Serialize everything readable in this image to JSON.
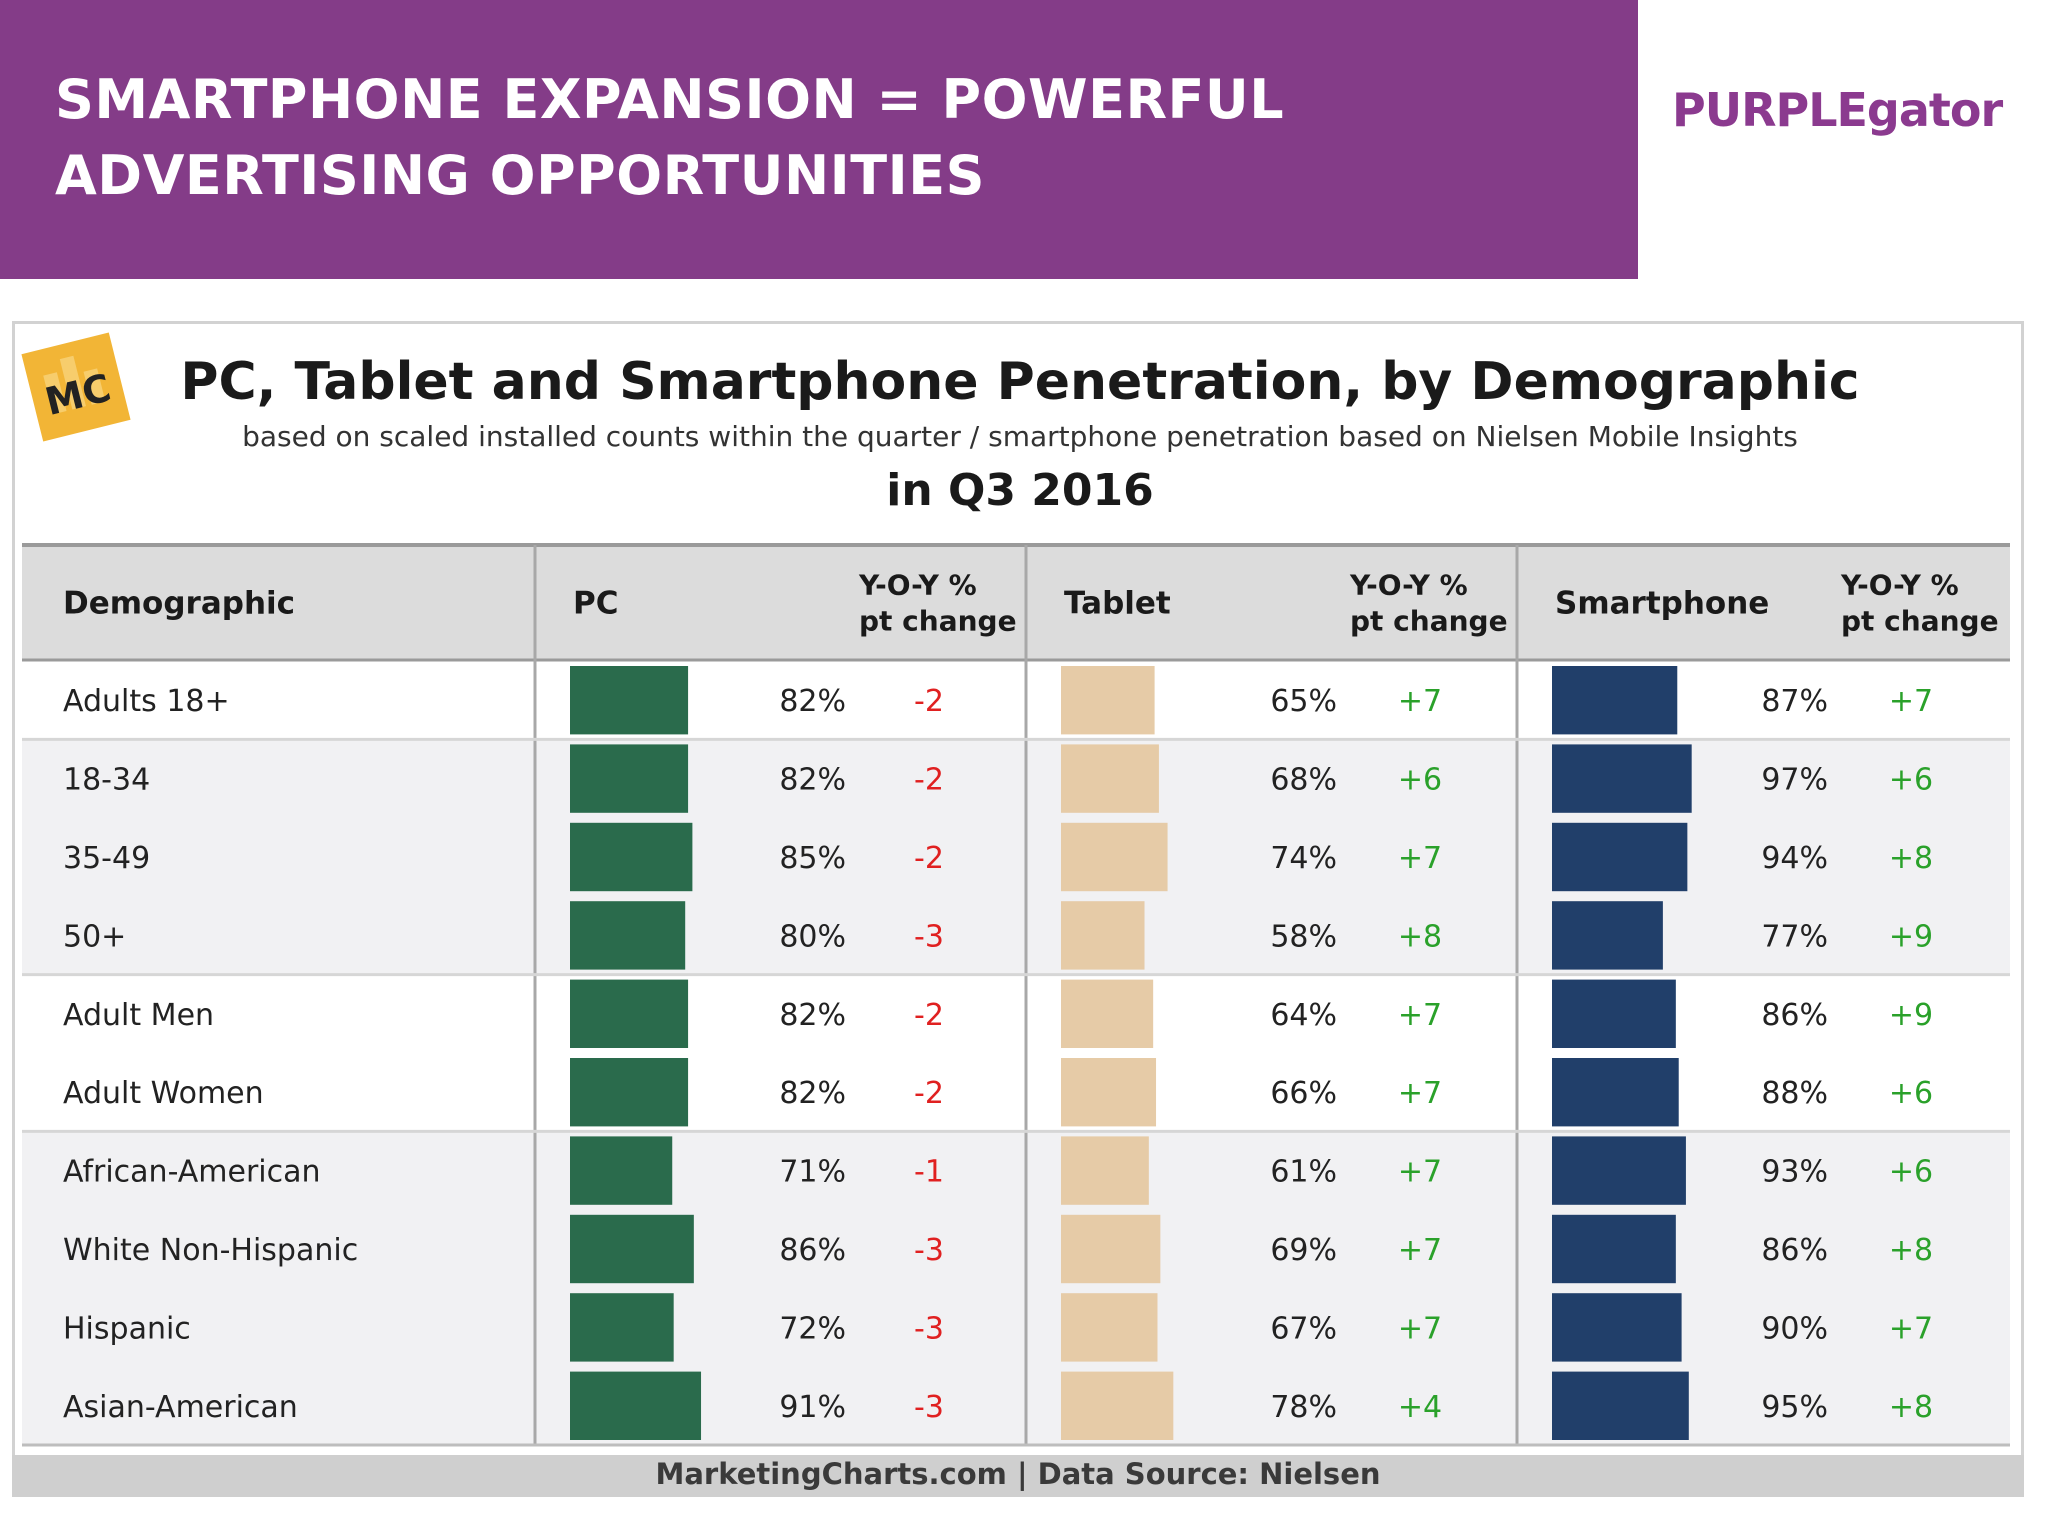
{
  "slide": {
    "title": "SMARTPHONE EXPANSION = POWERFUL ADVERTISING OPPORTUNITIES",
    "brand_logo": "PURPLEgator",
    "colors": {
      "banner": "#843c88"
    }
  },
  "chart_logo": "MC",
  "footer": "MarketingCharts.com | Data Source: Nielsen",
  "chart_data": {
    "type": "table",
    "title": "PC, Tablet and Smartphone Penetration, by Demographic",
    "subtitle": "based on scaled installed counts within the quarter / smartphone penetration based on Nielsen Mobile Insights",
    "period": "in Q3 2016",
    "headers": {
      "demographic": "Demographic",
      "yoy_line1": "Y-O-Y %",
      "yoy_line2": "pt change"
    },
    "devices": [
      {
        "name": "PC",
        "color": "#2a6b4c"
      },
      {
        "name": "Tablet",
        "color": "#e6cba7"
      },
      {
        "name": "Smartphone",
        "color": "#213f6a"
      }
    ],
    "colors": {
      "negative": "#e02020",
      "positive": "#2aa12a"
    },
    "rows": [
      {
        "label": "Adults 18+",
        "values": [
          82,
          65,
          87
        ],
        "display": [
          "82%",
          "65%",
          "87%"
        ],
        "changes": [
          "-2",
          "+7",
          "+7"
        ]
      },
      {
        "label": "18-34",
        "values": [
          82,
          68,
          97
        ],
        "display": [
          "82%",
          "68%",
          "97%"
        ],
        "changes": [
          "-2",
          "+6",
          "+6"
        ]
      },
      {
        "label": "35-49",
        "values": [
          85,
          74,
          94
        ],
        "display": [
          "85%",
          "74%",
          "94%"
        ],
        "changes": [
          "-2",
          "+7",
          "+8"
        ]
      },
      {
        "label": "50+",
        "values": [
          80,
          58,
          77
        ],
        "display": [
          "80%",
          "58%",
          "77%"
        ],
        "changes": [
          "-3",
          "+8",
          "+9"
        ]
      },
      {
        "label": "Adult Men",
        "values": [
          82,
          64,
          86
        ],
        "display": [
          "82%",
          "64%",
          "86%"
        ],
        "changes": [
          "-2",
          "+7",
          "+9"
        ]
      },
      {
        "label": "Adult Women",
        "values": [
          82,
          66,
          88
        ],
        "display": [
          "82%",
          "66%",
          "88%"
        ],
        "changes": [
          "-2",
          "+7",
          "+6"
        ]
      },
      {
        "label": "African-American",
        "values": [
          71,
          61,
          93
        ],
        "display": [
          "71%",
          "61%",
          "93%"
        ],
        "changes": [
          "-1",
          "+7",
          "+6"
        ]
      },
      {
        "label": "White Non-Hispanic",
        "values": [
          86,
          69,
          86
        ],
        "display": [
          "86%",
          "69%",
          "86%"
        ],
        "changes": [
          "-3",
          "+7",
          "+8"
        ]
      },
      {
        "label": "Hispanic",
        "values": [
          72,
          67,
          90
        ],
        "display": [
          "72%",
          "67%",
          "90%"
        ],
        "changes": [
          "-3",
          "+7",
          "+7"
        ]
      },
      {
        "label": "Asian-American",
        "values": [
          91,
          78,
          95
        ],
        "display": [
          "91%",
          "78%",
          "95%"
        ],
        "changes": [
          "-3",
          "+4",
          "+8"
        ]
      }
    ],
    "groups": [
      [
        0
      ],
      [
        1,
        2,
        3
      ],
      [
        4,
        5
      ],
      [
        6,
        7,
        8,
        9
      ]
    ],
    "max_value": 100
  }
}
